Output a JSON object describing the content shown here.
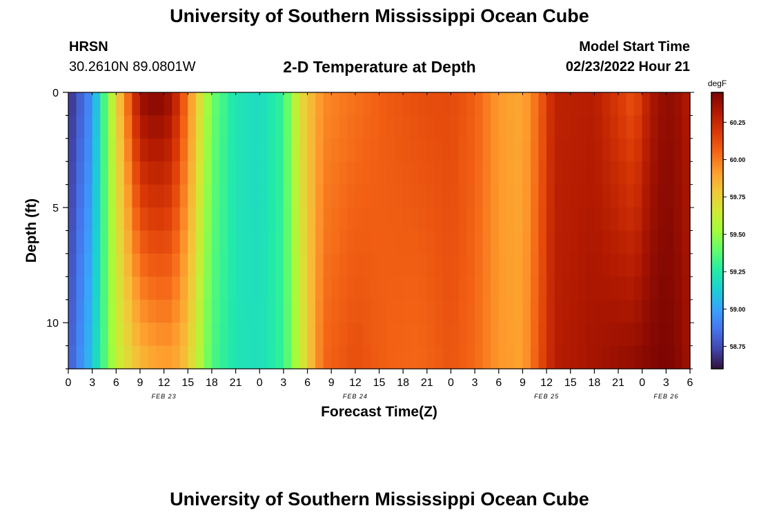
{
  "header": {
    "title": "University of Southern Mississippi Ocean Cube",
    "station": "HRSN",
    "coordinates": "30.2610N  89.0801W",
    "subtitle": "2-D Temperature at Depth",
    "model_start_label": "Model Start Time",
    "model_start_value": "02/23/2022 Hour 21"
  },
  "footer": {
    "title": "University of Southern Mississippi Ocean Cube"
  },
  "chart_data": {
    "type": "heatmap",
    "title": "2-D Temperature at Depth",
    "xlabel": "Forecast Time(Z)",
    "ylabel": "Depth (ft)",
    "x_range_hours": [
      0,
      78
    ],
    "y_range_ft": [
      0,
      12
    ],
    "x_ticks": [
      "0",
      "3",
      "6",
      "9",
      "12",
      "15",
      "18",
      "21",
      "0",
      "3",
      "6",
      "9",
      "12",
      "15",
      "18",
      "21",
      "0",
      "3",
      "6",
      "9",
      "12",
      "15",
      "18",
      "21",
      "0",
      "3",
      "6"
    ],
    "y_ticks": [
      "0",
      "5",
      "10"
    ],
    "date_labels": [
      {
        "label": "FEB 23",
        "hour": 12
      },
      {
        "label": "FEB 24",
        "hour": 36
      },
      {
        "label": "FEB 25",
        "hour": 60
      },
      {
        "label": "FEB 26",
        "hour": 75
      }
    ],
    "colorbar": {
      "unit": "degF",
      "min": 58.6,
      "max": 60.45,
      "ticks": [
        "58.75",
        "59.00",
        "59.25",
        "59.50",
        "59.75",
        "60.00",
        "60.25"
      ],
      "tick_values": [
        58.75,
        59.0,
        59.25,
        59.5,
        59.75,
        60.0,
        60.25
      ]
    },
    "colormap": [
      "#30123b",
      "#4145ab",
      "#4675ed",
      "#39a2fc",
      "#1bcfd4",
      "#24eca6",
      "#61fc6c",
      "#a4fc3b",
      "#d1e834",
      "#f3c63a",
      "#fe9b2d",
      "#f36315",
      "#d93806",
      "#b11901",
      "#7a0402"
    ],
    "surface_temperature_series": [
      {
        "hour": 0,
        "value": 58.66
      },
      {
        "hour": 3,
        "value": 58.95
      },
      {
        "hour": 6,
        "value": 59.72
      },
      {
        "hour": 9,
        "value": 60.38
      },
      {
        "hour": 11,
        "value": 60.44
      },
      {
        "hour": 13,
        "value": 60.36
      },
      {
        "hour": 15,
        "value": 60.0
      },
      {
        "hour": 18,
        "value": 59.42
      },
      {
        "hour": 21,
        "value": 59.22
      },
      {
        "hour": 24,
        "value": 59.18
      },
      {
        "hour": 27,
        "value": 59.3
      },
      {
        "hour": 29,
        "value": 59.7
      },
      {
        "hour": 32,
        "value": 59.96
      },
      {
        "hour": 36,
        "value": 60.02
      },
      {
        "hour": 40,
        "value": 60.08
      },
      {
        "hour": 44,
        "value": 60.12
      },
      {
        "hour": 48,
        "value": 60.13
      },
      {
        "hour": 51,
        "value": 60.07
      },
      {
        "hour": 54,
        "value": 59.92
      },
      {
        "hour": 57,
        "value": 59.88
      },
      {
        "hour": 59,
        "value": 60.05
      },
      {
        "hour": 61,
        "value": 60.28
      },
      {
        "hour": 66,
        "value": 60.3
      },
      {
        "hour": 69,
        "value": 60.18
      },
      {
        "hour": 71,
        "value": 60.1
      },
      {
        "hour": 73,
        "value": 60.32
      },
      {
        "hour": 75,
        "value": 60.4
      },
      {
        "hour": 77,
        "value": 60.36
      },
      {
        "hour": 78,
        "value": 60.3
      }
    ],
    "deep_temperature_series": [
      {
        "hour": 0,
        "value": 58.78
      },
      {
        "hour": 3,
        "value": 59.1
      },
      {
        "hour": 6,
        "value": 59.6
      },
      {
        "hour": 9,
        "value": 59.82
      },
      {
        "hour": 11,
        "value": 59.88
      },
      {
        "hour": 13,
        "value": 59.9
      },
      {
        "hour": 15,
        "value": 59.78
      },
      {
        "hour": 18,
        "value": 59.35
      },
      {
        "hour": 21,
        "value": 59.22
      },
      {
        "hour": 24,
        "value": 59.2
      },
      {
        "hour": 27,
        "value": 59.3
      },
      {
        "hour": 29,
        "value": 59.6
      },
      {
        "hour": 32,
        "value": 60.05
      },
      {
        "hour": 36,
        "value": 60.12
      },
      {
        "hour": 40,
        "value": 60.06
      },
      {
        "hour": 44,
        "value": 60.04
      },
      {
        "hour": 48,
        "value": 60.1
      },
      {
        "hour": 51,
        "value": 60.04
      },
      {
        "hour": 54,
        "value": 59.93
      },
      {
        "hour": 57,
        "value": 59.9
      },
      {
        "hour": 59,
        "value": 60.1
      },
      {
        "hour": 61,
        "value": 60.3
      },
      {
        "hour": 66,
        "value": 60.35
      },
      {
        "hour": 69,
        "value": 60.38
      },
      {
        "hour": 71,
        "value": 60.4
      },
      {
        "hour": 73,
        "value": 60.43
      },
      {
        "hour": 75,
        "value": 60.45
      },
      {
        "hour": 77,
        "value": 60.4
      },
      {
        "hour": 78,
        "value": 60.35
      }
    ]
  }
}
